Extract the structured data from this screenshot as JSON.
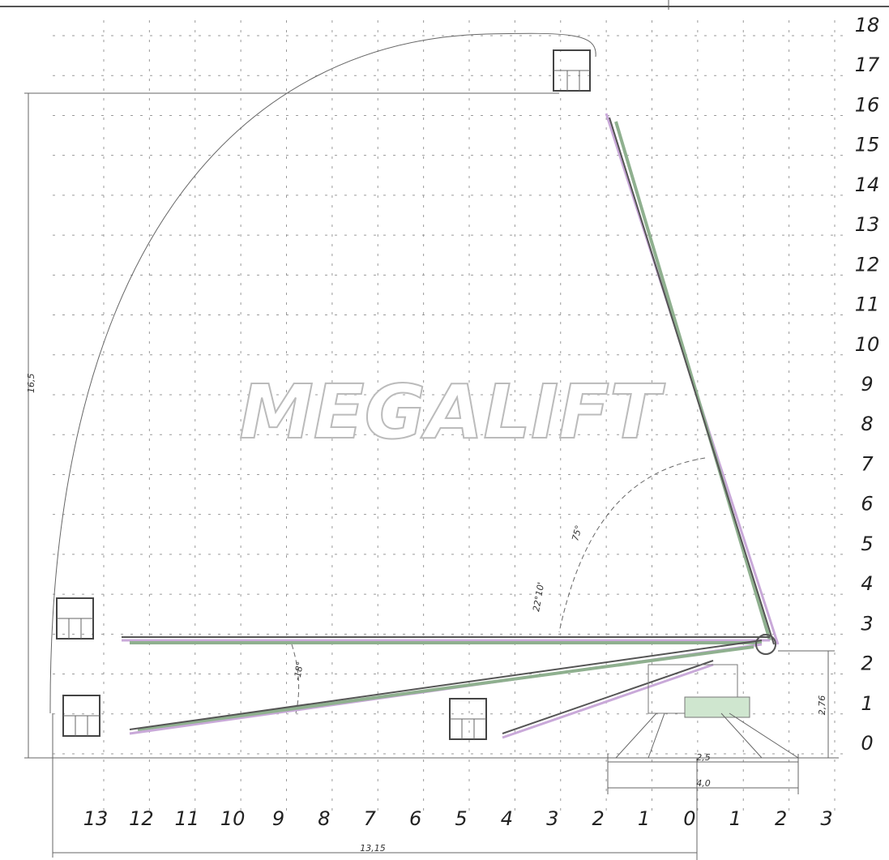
{
  "watermark": "MEGALIFT",
  "y_axis_labels": [
    "18",
    "17",
    "16",
    "15",
    "14",
    "13",
    "12",
    "11",
    "10",
    "9",
    "8",
    "7",
    "6",
    "5",
    "4",
    "3",
    "2",
    "1",
    "0"
  ],
  "x_axis_labels": [
    "13",
    "12",
    "11",
    "10",
    "9",
    "8",
    "7",
    "6",
    "5",
    "4",
    "3",
    "2",
    "1",
    "0",
    "1",
    "2",
    "3"
  ],
  "dimensions": {
    "max_height": "16,5",
    "outrigger_inner": "2,5",
    "outrigger_outer": "4,0",
    "base_height": "2,76",
    "max_reach": "13,15",
    "angle_upper": "75°",
    "angle_mid": "22°10'",
    "angle_lower": "-18°"
  }
}
